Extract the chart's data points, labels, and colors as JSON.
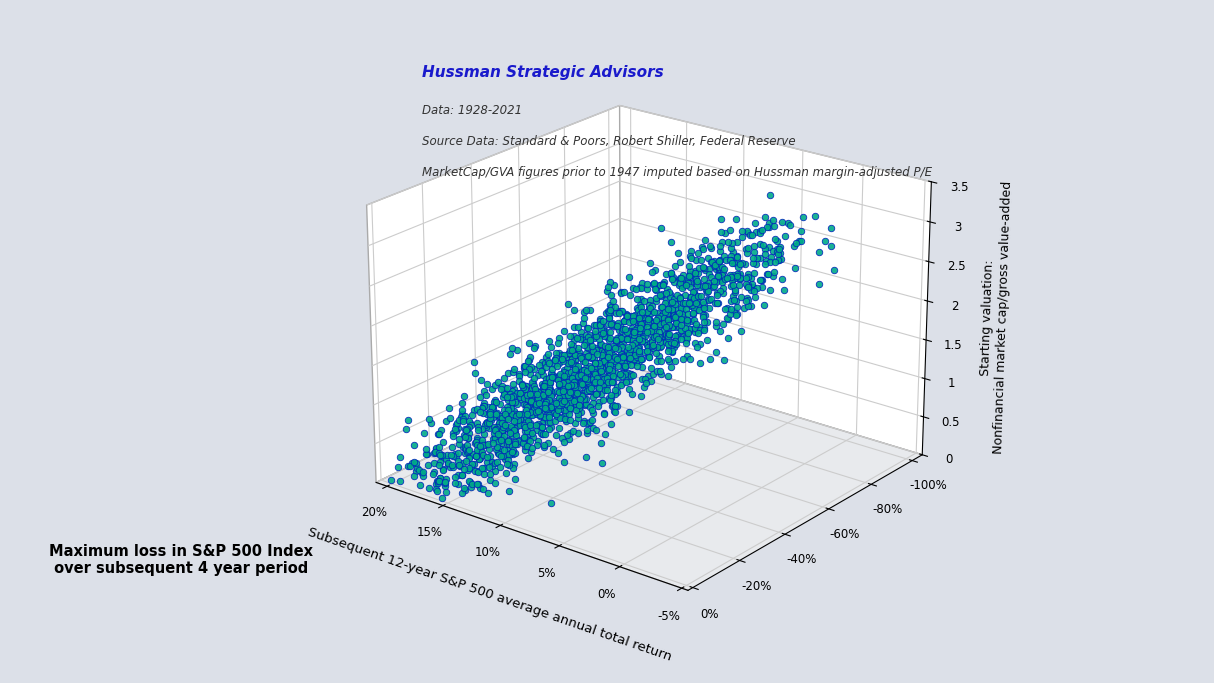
{
  "title_line1": "Hussman Strategic Advisors",
  "title_line2": "Data: 1928-2021",
  "title_line3": "Source Data: Standard & Poors, Robert Shiller, Federal Reserve",
  "title_line4": "MarketCap/GVA figures prior to 1947 imputed based on Hussman margin-adjusted P/E",
  "xlabel_loss": "Maximum loss in S&P 500 Index\n over subsequent 4 year period",
  "xlabel_return": "Subsequent 12-year S&P 500 average annual total return",
  "zlabel": "Starting valuation:\nNonfinancial market cap/gross value-added",
  "n_points": 1800,
  "dot_color_fill": "#00aa88",
  "dot_color_edge": "#0022bb",
  "background_color": "#dce0e8",
  "pane_back_color": "#ffffff",
  "pane_side_color": "#e8eaed",
  "grid_color": "#cccccc",
  "seed": 42,
  "title_color": "#1a1acc",
  "subtitle_color": "#333333",
  "dot_size": 22,
  "elev": 22,
  "azim": -52
}
